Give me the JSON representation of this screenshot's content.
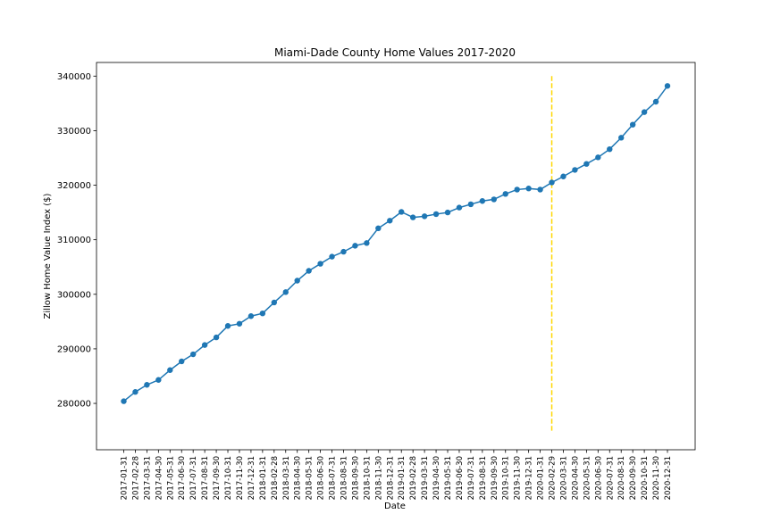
{
  "chart_data": {
    "type": "line",
    "title": "Miami-Dade County Home Values 2017-2020",
    "xlabel": "Date",
    "ylabel": "Zillow Home Value Index ($)",
    "ylim": [
      271500,
      342500
    ],
    "yticks": [
      280000,
      290000,
      300000,
      310000,
      320000,
      330000,
      340000
    ],
    "grid": false,
    "legend": "none",
    "series_color": "#1f77b4",
    "marker": "circle",
    "categories": [
      "2017-01-31",
      "2017-02-28",
      "2017-03-31",
      "2017-04-30",
      "2017-05-31",
      "2017-06-30",
      "2017-07-31",
      "2017-08-31",
      "2017-09-30",
      "2017-10-31",
      "2017-11-30",
      "2017-12-31",
      "2018-01-31",
      "2018-02-28",
      "2018-03-31",
      "2018-04-30",
      "2018-05-31",
      "2018-06-30",
      "2018-07-31",
      "2018-08-31",
      "2018-09-30",
      "2018-10-31",
      "2018-11-30",
      "2018-12-31",
      "2019-01-31",
      "2019-02-28",
      "2019-03-31",
      "2019-04-30",
      "2019-05-31",
      "2019-06-30",
      "2019-07-31",
      "2019-08-31",
      "2019-09-30",
      "2019-10-31",
      "2019-11-30",
      "2019-12-31",
      "2020-01-31",
      "2020-02-29",
      "2020-03-31",
      "2020-04-30",
      "2020-05-31",
      "2020-06-30",
      "2020-07-31",
      "2020-08-31",
      "2020-09-30",
      "2020-10-31",
      "2020-11-30",
      "2020-12-31"
    ],
    "values": [
      280400,
      282100,
      283400,
      284300,
      286100,
      287700,
      289000,
      290700,
      292100,
      294200,
      294600,
      296000,
      296500,
      298500,
      300400,
      302500,
      304300,
      305600,
      306900,
      307800,
      308900,
      309400,
      312100,
      313500,
      315100,
      314100,
      314300,
      314700,
      315000,
      315900,
      316500,
      317100,
      317400,
      318400,
      319200,
      319400,
      319200,
      320500,
      321600,
      322800,
      323900,
      325100,
      326600,
      328700,
      331100,
      333400,
      335300,
      338200
    ],
    "reference_line": {
      "x": "2020-02-29",
      "ymin": 275000,
      "ymax": 340000,
      "color": "#ffd700",
      "style": "dashed"
    }
  }
}
